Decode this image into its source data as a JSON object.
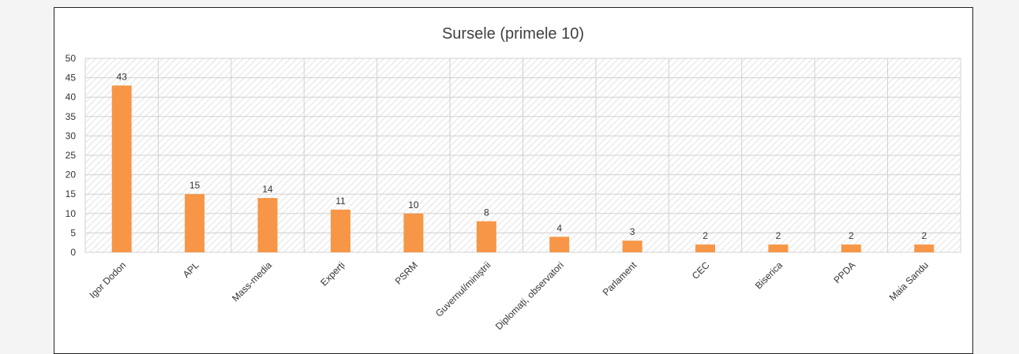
{
  "chart_data": {
    "type": "bar",
    "title": "Sursele (primele 10)",
    "categories": [
      "Igor Dodon",
      "APL",
      "Mass-media",
      "Experți",
      "PSRM",
      "Guvernul/miniștrii",
      "Diplomați, observatori",
      "Parlament",
      "CEC",
      "Biserica",
      "PPDA",
      "Maia Sandu"
    ],
    "values": [
      43,
      15,
      14,
      11,
      10,
      8,
      4,
      3,
      2,
      2,
      2,
      2
    ],
    "ylim": [
      0,
      50
    ],
    "yticks": [
      0,
      5,
      10,
      15,
      20,
      25,
      30,
      35,
      40,
      45,
      50
    ],
    "grid": true,
    "legend": "none",
    "bar_color": "#f79646"
  }
}
